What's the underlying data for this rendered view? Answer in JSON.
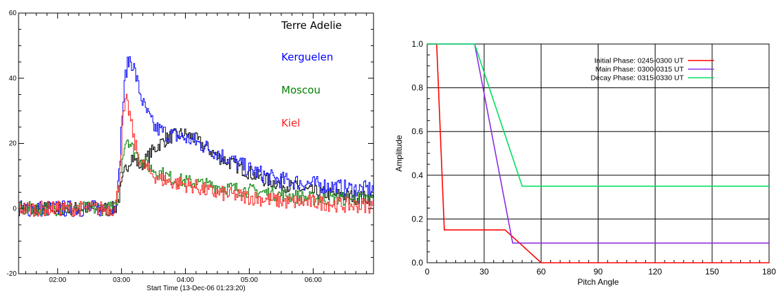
{
  "chart_data": [
    {
      "type": "line",
      "xlabel": "Start Time (13-Dec-06 01:23:20)",
      "ylabel": "",
      "xlim_hours": [
        1.389,
        6.944
      ],
      "ylim": [
        -20,
        60
      ],
      "x_tick_labels": [
        "02:00",
        "03:00",
        "04:00",
        "05:00",
        "06:00"
      ],
      "y_tick_labels": [
        "-20",
        "0",
        "20",
        "40",
        "60"
      ],
      "legend_placement": "top-right, text labels in series colors",
      "series": [
        {
          "name": "Terre Adelie",
          "color": "#000000",
          "points": [
            [
              1.4,
              0
            ],
            [
              2.9,
              0
            ],
            [
              2.95,
              3
            ],
            [
              3.05,
              12
            ],
            [
              3.15,
              16
            ],
            [
              3.3,
              13
            ],
            [
              3.45,
              17
            ],
            [
              3.6,
              20
            ],
            [
              3.75,
              22
            ],
            [
              3.95,
              23
            ],
            [
              4.1,
              22
            ],
            [
              4.3,
              19
            ],
            [
              4.5,
              16
            ],
            [
              4.8,
              13
            ],
            [
              5.2,
              9
            ],
            [
              5.6,
              7
            ],
            [
              6.0,
              5
            ],
            [
              6.5,
              4
            ],
            [
              6.94,
              3
            ]
          ]
        },
        {
          "name": "Kerguelen",
          "color": "#0000ff",
          "points": [
            [
              1.4,
              0
            ],
            [
              2.88,
              0
            ],
            [
              2.95,
              8
            ],
            [
              3.0,
              28
            ],
            [
              3.06,
              42
            ],
            [
              3.12,
              46
            ],
            [
              3.18,
              44
            ],
            [
              3.25,
              38
            ],
            [
              3.35,
              31
            ],
            [
              3.5,
              25
            ],
            [
              3.7,
              23
            ],
            [
              3.9,
              22
            ],
            [
              4.1,
              21
            ],
            [
              4.3,
              19
            ],
            [
              4.6,
              16
            ],
            [
              5.0,
              12
            ],
            [
              5.4,
              9
            ],
            [
              5.8,
              8
            ],
            [
              6.2,
              7
            ],
            [
              6.6,
              6
            ],
            [
              6.94,
              6
            ]
          ]
        },
        {
          "name": "Moscou",
          "color": "#008000",
          "points": [
            [
              1.4,
              0
            ],
            [
              2.9,
              0
            ],
            [
              2.96,
              8
            ],
            [
              3.02,
              18
            ],
            [
              3.08,
              22
            ],
            [
              3.15,
              19
            ],
            [
              3.25,
              16
            ],
            [
              3.4,
              13
            ],
            [
              3.6,
              11
            ],
            [
              3.8,
              9
            ],
            [
              4.1,
              8
            ],
            [
              4.4,
              7
            ],
            [
              4.8,
              6
            ],
            [
              5.2,
              5
            ],
            [
              5.6,
              4
            ],
            [
              6.0,
              3
            ],
            [
              6.5,
              3
            ],
            [
              6.94,
              3
            ]
          ]
        },
        {
          "name": "Kiel",
          "color": "#ff2020",
          "points": [
            [
              1.4,
              0
            ],
            [
              2.9,
              0
            ],
            [
              2.96,
              10
            ],
            [
              3.02,
              28
            ],
            [
              3.07,
              33
            ],
            [
              3.12,
              29
            ],
            [
              3.2,
              20
            ],
            [
              3.3,
              14
            ],
            [
              3.45,
              11
            ],
            [
              3.6,
              9
            ],
            [
              3.8,
              8
            ],
            [
              4.1,
              7
            ],
            [
              4.4,
              5
            ],
            [
              4.8,
              4
            ],
            [
              5.2,
              3
            ],
            [
              5.6,
              2
            ],
            [
              6.0,
              2
            ],
            [
              6.5,
              1
            ],
            [
              6.94,
              1
            ]
          ]
        }
      ]
    },
    {
      "type": "line",
      "xlabel": "Pitch Angle",
      "ylabel": "Amplitude",
      "xlim": [
        0,
        180
      ],
      "ylim": [
        0,
        1.0
      ],
      "x_tick_labels": [
        "0",
        "30",
        "60",
        "90",
        "120",
        "150",
        "180"
      ],
      "y_tick_labels": [
        "0.0",
        "0.2",
        "0.4",
        "0.6",
        "0.8",
        "1.0"
      ],
      "grid": true,
      "legend_placement": "top-right",
      "series": [
        {
          "name": "Initial Phase: 0245-0300 UT",
          "color": "#ff0000",
          "points": [
            [
              0,
              1.0
            ],
            [
              5,
              1.0
            ],
            [
              9,
              0.15
            ],
            [
              41,
              0.15
            ],
            [
              60,
              0.0
            ],
            [
              180,
              0.0
            ]
          ]
        },
        {
          "name": "Main Phase: 0300-0315 UT",
          "color": "#8a2be2",
          "points": [
            [
              0,
              1.0
            ],
            [
              25,
              1.0
            ],
            [
              45,
              0.09
            ],
            [
              180,
              0.09
            ]
          ]
        },
        {
          "name": "Decay Phase: 0315-0330 UT",
          "color": "#00e060",
          "points": [
            [
              0,
              1.0
            ],
            [
              25,
              1.0
            ],
            [
              50,
              0.35
            ],
            [
              180,
              0.35
            ]
          ]
        }
      ]
    }
  ]
}
